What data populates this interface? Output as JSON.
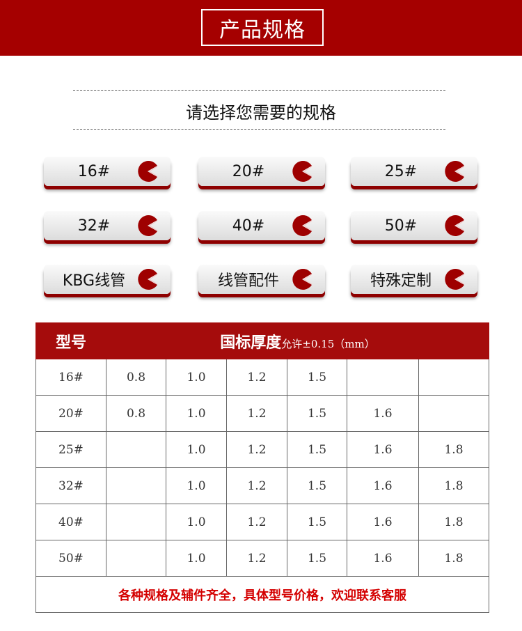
{
  "header": {
    "title": "产品规格"
  },
  "subtitle": "请选择您需要的规格",
  "buttons": [
    {
      "label": "16#"
    },
    {
      "label": "20#"
    },
    {
      "label": "25#"
    },
    {
      "label": "32#"
    },
    {
      "label": "40#"
    },
    {
      "label": "50#"
    },
    {
      "label": "KBG线管"
    },
    {
      "label": "线管配件"
    },
    {
      "label": "特殊定制"
    }
  ],
  "colors": {
    "accent": "#a50000",
    "button_shadow": "#8e0000"
  },
  "table": {
    "col_model": "型号",
    "col_thickness": "国标厚度",
    "col_tolerance": "允许±0.15（mm）",
    "rows": [
      {
        "model": "16#",
        "values": [
          "0.8",
          "1.0",
          "1.2",
          "1.5",
          "",
          ""
        ]
      },
      {
        "model": "20#",
        "values": [
          "0.8",
          "1.0",
          "1.2",
          "1.5",
          "1.6",
          ""
        ]
      },
      {
        "model": "25#",
        "values": [
          "",
          "1.0",
          "1.2",
          "1.5",
          "1.6",
          "1.8"
        ]
      },
      {
        "model": "32#",
        "values": [
          "",
          "1.0",
          "1.2",
          "1.5",
          "1.6",
          "1.8"
        ]
      },
      {
        "model": "40#",
        "values": [
          "",
          "1.0",
          "1.2",
          "1.5",
          "1.6",
          "1.8"
        ]
      },
      {
        "model": "50#",
        "values": [
          "",
          "1.0",
          "1.2",
          "1.5",
          "1.6",
          "1.8"
        ]
      }
    ],
    "footer": "各种规格及辅件齐全，具体型号价格，欢迎联系客服"
  }
}
